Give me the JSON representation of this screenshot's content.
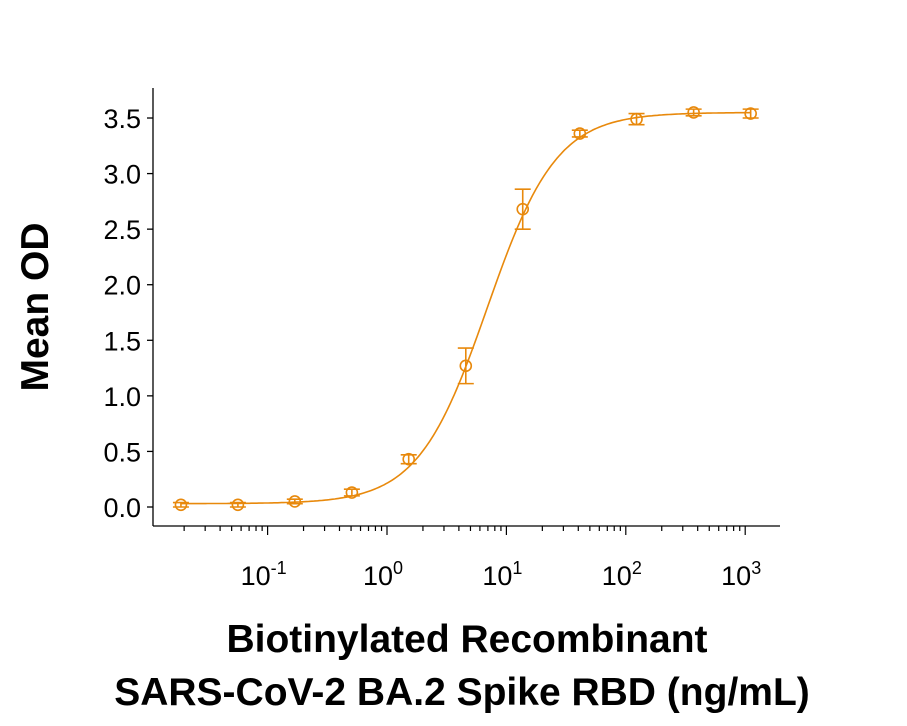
{
  "chart_data": {
    "type": "scatter",
    "title": "",
    "xlabel": [
      "Biotinylated Recombinant",
      "SARS-CoV-2 BA.2 Spike RBD (ng/mL)"
    ],
    "ylabel": "Mean OD",
    "x_scale": "log",
    "xlim": [
      0.011,
      1950
    ],
    "ylim": [
      -0.15,
      3.85
    ],
    "x_ticks": [
      {
        "base": "10",
        "exp": "-1",
        "value": 0.1
      },
      {
        "base": "10",
        "exp": "0",
        "value": 1
      },
      {
        "base": "10",
        "exp": "1",
        "value": 10
      },
      {
        "base": "10",
        "exp": "2",
        "value": 100
      },
      {
        "base": "10",
        "exp": "3",
        "value": 1000
      }
    ],
    "y_ticks": [
      "0.0",
      "0.5",
      "1.0",
      "1.5",
      "2.0",
      "2.5",
      "3.0",
      "3.5"
    ],
    "grid": false,
    "legend": "none",
    "color": "#E8890C",
    "series": [
      {
        "x": [
          0.0188,
          0.0564,
          0.169,
          0.508,
          1.52,
          4.57,
          13.7,
          41.2,
          123,
          370,
          1111
        ],
        "y": [
          0.02,
          0.02,
          0.05,
          0.13,
          0.43,
          1.27,
          2.68,
          3.36,
          3.49,
          3.55,
          3.54
        ],
        "error": [
          0.02,
          0.02,
          0.02,
          0.03,
          0.04,
          0.16,
          0.18,
          0.03,
          0.05,
          0.03,
          0.04
        ]
      }
    ],
    "fit_curve": {
      "model": "4PL",
      "bottom": 0.03,
      "top": 3.55,
      "ec50": 6.9,
      "hill": 1.5
    }
  }
}
